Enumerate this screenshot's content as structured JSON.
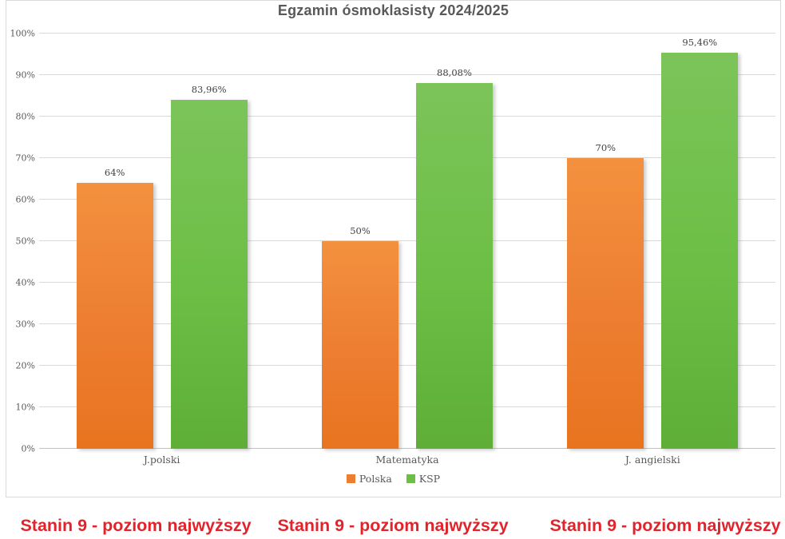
{
  "title": "Egzamin ósmoklasisty 2024/2025",
  "chart_data": {
    "type": "bar",
    "title": "Egzamin ósmoklasisty 2024/2025",
    "categories": [
      "J.polski",
      "Matematyka",
      "J. angielski"
    ],
    "series": [
      {
        "name": "Polska",
        "color": "#ED7D31",
        "values": [
          64,
          50,
          70
        ],
        "labels": [
          "64%",
          "50%",
          "70%"
        ]
      },
      {
        "name": "KSP",
        "color": "#6CBE45",
        "values": [
          83.96,
          88.08,
          95.46
        ],
        "labels": [
          "83,96%",
          "88,08%",
          "95,46%"
        ]
      }
    ],
    "xlabel": "",
    "ylabel": "",
    "ylim": [
      0,
      100
    ],
    "yticks": [
      "0%",
      "10%",
      "20%",
      "30%",
      "40%",
      "50%",
      "60%",
      "70%",
      "80%",
      "90%",
      "100%"
    ],
    "grid": true,
    "legend_position": "bottom"
  },
  "footer": {
    "notes": [
      "Stanin 9 - poziom najwyższy",
      "Stanin 9 - poziom najwyższy",
      "Stanin 9 - poziom najwyższy"
    ],
    "color": "#E1242B"
  },
  "colors": {
    "title_text": "#595959",
    "axis_text": "#595959",
    "gridline": "#D9D9D9",
    "series_polska": "#ED7D31",
    "series_ksp": "#6CBE45"
  }
}
